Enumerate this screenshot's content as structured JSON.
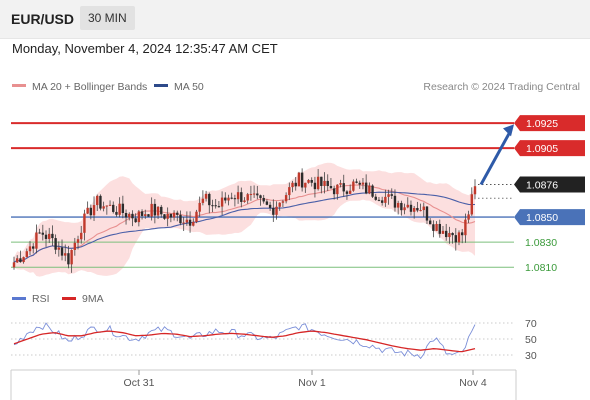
{
  "header": {
    "symbol": "EUR/USD",
    "timeframe": "30 MIN"
  },
  "datetime": "Monday, November 4, 2024 12:35:47 AM CET",
  "legend": {
    "ma20": "MA 20 + Bollinger Bands",
    "ma50": "MA 50",
    "rsi": "RSI",
    "ma9": "9MA"
  },
  "copyright": "Research © 2024 Trading Central",
  "colors": {
    "resistance": "#d92b2b",
    "pivot": "#4a72b8",
    "support": "#3a9a3a",
    "up": "#c0392b",
    "down": "#2b2b2b",
    "bollinger": "#fbd9d9",
    "ma20": "#e89090",
    "ma50": "#4a5fa8",
    "rsi": "#7a8ed8",
    "rsi_ma": "#d62626",
    "arrow": "#2e5aa8"
  },
  "chart_data": {
    "type": "candlestick",
    "x_ticks": [
      "Oct 31",
      "Nov 1",
      "Nov 4"
    ],
    "ylim": [
      1.0795,
      1.0945
    ],
    "current_price": 1.0876,
    "levels": [
      {
        "label": "1.0925",
        "value": 1.0925,
        "kind": "resistance"
      },
      {
        "label": "1.0905",
        "value": 1.0905,
        "kind": "resistance"
      },
      {
        "label": "1.0876",
        "value": 1.0876,
        "kind": "current"
      },
      {
        "label": "1.0850",
        "value": 1.085,
        "kind": "pivot"
      },
      {
        "label": "1.0830",
        "value": 1.083,
        "kind": "support"
      },
      {
        "label": "1.0810",
        "value": 1.081,
        "kind": "support"
      }
    ],
    "key_prices": [
      1.0814,
      1.0824,
      1.0838,
      1.083,
      1.0816,
      1.0844,
      1.0862,
      1.0858,
      1.0854,
      1.085,
      1.0856,
      1.0852,
      1.085,
      1.0848,
      1.0864,
      1.0858,
      1.0868,
      1.0866,
      1.0862,
      1.0856,
      1.0868,
      1.088,
      1.0878,
      1.0874,
      1.0872,
      1.0876,
      1.0872,
      1.0868,
      1.0862,
      1.086,
      1.0858,
      1.0844,
      1.0838,
      1.0834,
      1.0872
    ],
    "rsi": {
      "levels": [
        "70",
        "50",
        "30"
      ],
      "ylim": [
        20,
        80
      ],
      "key_values": [
        42,
        58,
        68,
        60,
        46,
        56,
        64,
        62,
        54,
        50,
        58,
        62,
        56,
        50,
        56,
        60,
        58,
        55,
        52,
        50,
        58,
        66,
        62,
        56,
        52,
        48,
        44,
        38,
        34,
        32,
        30,
        52,
        30,
        30,
        66
      ],
      "ma_key_values": [
        44,
        50,
        56,
        58,
        54,
        54,
        58,
        60,
        58,
        54,
        55,
        57,
        56,
        53,
        54,
        56,
        57,
        56,
        54,
        52,
        54,
        58,
        60,
        58,
        55,
        52,
        49,
        45,
        41,
        38,
        36,
        38,
        36,
        34,
        38
      ]
    }
  }
}
